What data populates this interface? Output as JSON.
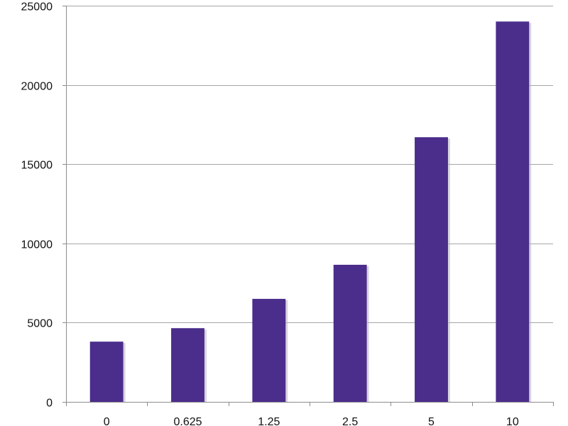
{
  "chart_data": {
    "type": "bar",
    "title": "",
    "xlabel": "",
    "ylabel": "",
    "categories": [
      "0",
      "0.625",
      "1.25",
      "2.5",
      "5",
      "10"
    ],
    "values": [
      3800,
      4650,
      6500,
      8650,
      16700,
      24000
    ],
    "ylim": [
      0,
      25000
    ],
    "yticks": [
      0,
      5000,
      10000,
      15000,
      20000,
      25000
    ],
    "ytick_labels": [
      "0",
      "5000",
      "10000",
      "15000",
      "20000",
      "25000"
    ],
    "grid": true,
    "legend": "none",
    "colors": {
      "bar": "#4b2d8c",
      "bar_shadow": "#b9b3c4",
      "grid": "#a6a6a6",
      "axis": "#8c8c8c"
    }
  }
}
